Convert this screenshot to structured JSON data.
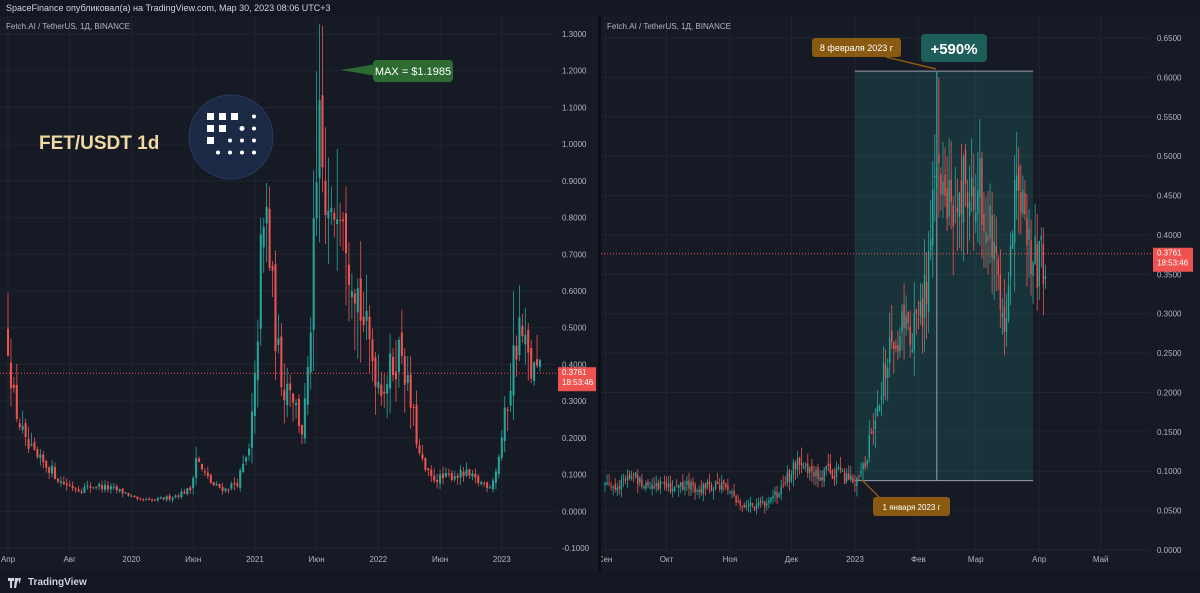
{
  "header": {
    "title": "SpaceFinance опубликовал(а) на TradingView.com, Мар 30, 2023 08:06 UTC+3"
  },
  "footer": {
    "brand": "TradingView"
  },
  "colors": {
    "up": "#26a69a",
    "down": "#ef5350",
    "bg": "#161a25",
    "grid": "#1f2433",
    "axis": "#b2b5be",
    "price": "#ef5350"
  },
  "left": {
    "symbol": "Fetch.AI / TetherUS, 1Д, BINANCE",
    "pair_label": "FET/USDT 1d",
    "max_label": "MAX = $1.1985",
    "last_price": "0.3761",
    "countdown": "18:53:46",
    "chart_data": {
      "type": "candlestick",
      "title": "FET/USDT 1d",
      "ylim": [
        -0.1,
        1.3
      ],
      "yticks": [
        "1.3000",
        "1.2000",
        "1.1000",
        "1.0000",
        "0.9000",
        "0.8000",
        "0.7000",
        "0.6000",
        "0.5000",
        "0.4000",
        "0.3000",
        "0.2000",
        "0.1000",
        "0.0000",
        "-0.1000"
      ],
      "yticks_values": [
        1.3,
        1.2,
        1.1,
        1.0,
        0.9,
        0.8,
        0.7,
        0.6,
        0.5,
        0.4,
        0.3,
        0.2,
        0.1,
        0.0,
        -0.1
      ],
      "xticks": [
        "Апр",
        "Авг",
        "2020",
        "Июн",
        "2021",
        "Июн",
        "2022",
        "Июн",
        "2023"
      ],
      "xticks_index": [
        0,
        21,
        42,
        63,
        84,
        105,
        126,
        147,
        168
      ],
      "n": 182,
      "max_value": 1.1985,
      "last_value": 0.3761,
      "path": [
        [
          0,
          0.48
        ],
        [
          2,
          0.3
        ],
        [
          6,
          0.18
        ],
        [
          10,
          0.14
        ],
        [
          14,
          0.12
        ],
        [
          18,
          0.08
        ],
        [
          24,
          0.06
        ],
        [
          30,
          0.07
        ],
        [
          36,
          0.06
        ],
        [
          40,
          0.05
        ],
        [
          44,
          0.03
        ],
        [
          50,
          0.03
        ],
        [
          56,
          0.04
        ],
        [
          62,
          0.06
        ],
        [
          64,
          0.15
        ],
        [
          66,
          0.11
        ],
        [
          70,
          0.07
        ],
        [
          74,
          0.06
        ],
        [
          78,
          0.08
        ],
        [
          82,
          0.16
        ],
        [
          84,
          0.34
        ],
        [
          86,
          0.68
        ],
        [
          88,
          0.8
        ],
        [
          90,
          0.58
        ],
        [
          92,
          0.42
        ],
        [
          94,
          0.34
        ],
        [
          96,
          0.36
        ],
        [
          98,
          0.28
        ],
        [
          100,
          0.22
        ],
        [
          102,
          0.35
        ],
        [
          104,
          0.7
        ],
        [
          106,
          1.0
        ],
        [
          108,
          0.8
        ],
        [
          110,
          0.75
        ],
        [
          112,
          0.92
        ],
        [
          114,
          0.88
        ],
        [
          116,
          0.72
        ],
        [
          118,
          0.65
        ],
        [
          120,
          0.55
        ],
        [
          122,
          0.48
        ],
        [
          124,
          0.42
        ],
        [
          126,
          0.36
        ],
        [
          128,
          0.35
        ],
        [
          130,
          0.38
        ],
        [
          132,
          0.42
        ],
        [
          134,
          0.45
        ],
        [
          136,
          0.33
        ],
        [
          138,
          0.25
        ],
        [
          140,
          0.15
        ],
        [
          142,
          0.11
        ],
        [
          144,
          0.09
        ],
        [
          148,
          0.09
        ],
        [
          152,
          0.1
        ],
        [
          156,
          0.1
        ],
        [
          160,
          0.08
        ],
        [
          164,
          0.07
        ],
        [
          166,
          0.11
        ],
        [
          168,
          0.2
        ],
        [
          170,
          0.3
        ],
        [
          172,
          0.42
        ],
        [
          174,
          0.5
        ],
        [
          176,
          0.44
        ],
        [
          178,
          0.38
        ],
        [
          181,
          0.376
        ]
      ]
    }
  },
  "right": {
    "symbol": "Fetch.AI / TetherUS, 1Д, BINANCE",
    "gain_label": "+590%",
    "date_top_label": "8 февраля 2023 г",
    "date_bottom_label": "1 января 2023 г",
    "last_price": "0.3761",
    "countdown": "18:53:46",
    "chart_data": {
      "type": "candlestick",
      "ylim": [
        0.0,
        0.65
      ],
      "yticks": [
        "0.6500",
        "0.6000",
        "0.5500",
        "0.5000",
        "0.4500",
        "0.4000",
        "0.3500",
        "0.3000",
        "0.2500",
        "0.2000",
        "0.1500",
        "0.1000",
        "0.0500",
        "0.0000"
      ],
      "yticks_values": [
        0.65,
        0.6,
        0.55,
        0.5,
        0.45,
        0.4,
        0.35,
        0.3,
        0.25,
        0.2,
        0.15,
        0.1,
        0.05,
        0.0
      ],
      "xticks": [
        "Сен",
        "Окт",
        "Ноя",
        "Дек",
        "2023",
        "Фев",
        "Мар",
        "Апр",
        "Май"
      ],
      "xticks_index": [
        0,
        30,
        61,
        91,
        122,
        153,
        181,
        212,
        242
      ],
      "n": 270,
      "last_value": 0.3761,
      "measure_range": {
        "from_index": 122,
        "to_index": 209,
        "low": 0.088,
        "high": 0.608
      },
      "measure_vline_index": 162,
      "path": [
        [
          0,
          0.085
        ],
        [
          8,
          0.082
        ],
        [
          12,
          0.095
        ],
        [
          20,
          0.085
        ],
        [
          30,
          0.082
        ],
        [
          40,
          0.08
        ],
        [
          50,
          0.08
        ],
        [
          58,
          0.082
        ],
        [
          60,
          0.078
        ],
        [
          64,
          0.06
        ],
        [
          68,
          0.058
        ],
        [
          74,
          0.055
        ],
        [
          80,
          0.062
        ],
        [
          86,
          0.075
        ],
        [
          90,
          0.095
        ],
        [
          94,
          0.12
        ],
        [
          98,
          0.1
        ],
        [
          104,
          0.092
        ],
        [
          110,
          0.1
        ],
        [
          116,
          0.095
        ],
        [
          122,
          0.088
        ],
        [
          126,
          0.1
        ],
        [
          130,
          0.15
        ],
        [
          134,
          0.2
        ],
        [
          138,
          0.24
        ],
        [
          142,
          0.27
        ],
        [
          146,
          0.29
        ],
        [
          150,
          0.27
        ],
        [
          154,
          0.3
        ],
        [
          157,
          0.34
        ],
        [
          160,
          0.42
        ],
        [
          162,
          0.52
        ],
        [
          164,
          0.45
        ],
        [
          166,
          0.42
        ],
        [
          170,
          0.44
        ],
        [
          174,
          0.46
        ],
        [
          178,
          0.45
        ],
        [
          182,
          0.46
        ],
        [
          186,
          0.44
        ],
        [
          190,
          0.4
        ],
        [
          194,
          0.31
        ],
        [
          196,
          0.3
        ],
        [
          200,
          0.44
        ],
        [
          204,
          0.43
        ],
        [
          208,
          0.38
        ],
        [
          212,
          0.36
        ],
        [
          215,
          0.376
        ]
      ]
    }
  }
}
